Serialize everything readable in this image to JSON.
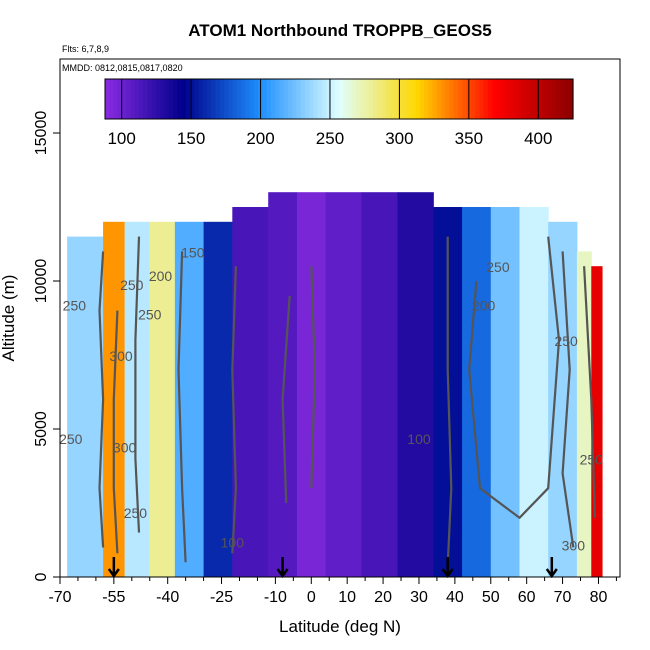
{
  "chart_data": {
    "type": "heatmap",
    "title": "ATOM1 Northbound TROPPB_GEOS5",
    "subtitle_flights": "Flts: 6,7,8,9",
    "subtitle_dates": "MMDD: 0812,0815,0817,0820",
    "xlabel": "Latitude (deg N)",
    "ylabel": "Altitude (m)",
    "xlim": [
      -70,
      86
    ],
    "ylim": [
      0,
      17500
    ],
    "x_ticks": [
      "-70",
      "-55",
      "-40",
      "-25",
      "-10",
      "0",
      "10",
      "20",
      "30",
      "40",
      "50",
      "60",
      "70",
      "80"
    ],
    "x_tick_values": [
      -70,
      -55,
      -40,
      -25,
      -10,
      0,
      10,
      20,
      30,
      40,
      50,
      60,
      70,
      80
    ],
    "y_ticks": [
      "0",
      "5000",
      "10000",
      "15000"
    ],
    "y_tick_values": [
      0,
      5000,
      10000,
      15000
    ],
    "colorbar": {
      "ticks": [
        "100",
        "150",
        "200",
        "250",
        "300",
        "350",
        "400"
      ],
      "tick_values": [
        100,
        150,
        200,
        250,
        300,
        350,
        400
      ],
      "range": [
        88,
        425
      ],
      "colors": [
        "#8a2be2",
        "#00008b",
        "#1e90ff",
        "#e0ffff",
        "#ffd700",
        "#ff0000",
        "#8b0000"
      ]
    },
    "flight_markers_lat": [
      -55,
      -8,
      38,
      67
    ],
    "profile": [
      {
        "lat": [
          -68,
          -58
        ],
        "alt_top": 11500,
        "value": 235
      },
      {
        "lat": [
          -58,
          -52
        ],
        "alt_top": 12000,
        "value": 330
      },
      {
        "lat": [
          -52,
          -45
        ],
        "alt_top": 12000,
        "value": 245
      },
      {
        "lat": [
          -45,
          -38
        ],
        "alt_top": 12000,
        "value": 280
      },
      {
        "lat": [
          -38,
          -30
        ],
        "alt_top": 12000,
        "value": 215
      },
      {
        "lat": [
          -30,
          -22
        ],
        "alt_top": 12000,
        "value": 160
      },
      {
        "lat": [
          -22,
          -12
        ],
        "alt_top": 12500,
        "value": 115
      },
      {
        "lat": [
          -12,
          -4
        ],
        "alt_top": 13000,
        "value": 110
      },
      {
        "lat": [
          -4,
          4
        ],
        "alt_top": 13000,
        "value": 95
      },
      {
        "lat": [
          4,
          14
        ],
        "alt_top": 13000,
        "value": 105
      },
      {
        "lat": [
          14,
          24
        ],
        "alt_top": 13000,
        "value": 115
      },
      {
        "lat": [
          24,
          34
        ],
        "alt_top": 13000,
        "value": 130
      },
      {
        "lat": [
          34,
          42
        ],
        "alt_top": 12500,
        "value": 150
      },
      {
        "lat": [
          42,
          50
        ],
        "alt_top": 12500,
        "value": 185
      },
      {
        "lat": [
          50,
          58
        ],
        "alt_top": 12500,
        "value": 225
      },
      {
        "lat": [
          58,
          66
        ],
        "alt_top": 12500,
        "value": 250
      },
      {
        "lat": [
          66,
          74
        ],
        "alt_top": 12000,
        "value": 235
      },
      {
        "lat": [
          74,
          78
        ],
        "alt_top": 11000,
        "value": 270
      },
      {
        "lat": [
          78,
          81
        ],
        "alt_top": 10500,
        "value": 380
      }
    ],
    "contour_labels": [
      "250",
      "250",
      "250",
      "250",
      "300",
      "300",
      "250",
      "200",
      "150",
      "100",
      "100",
      "200",
      "250",
      "250",
      "250",
      "300"
    ]
  }
}
